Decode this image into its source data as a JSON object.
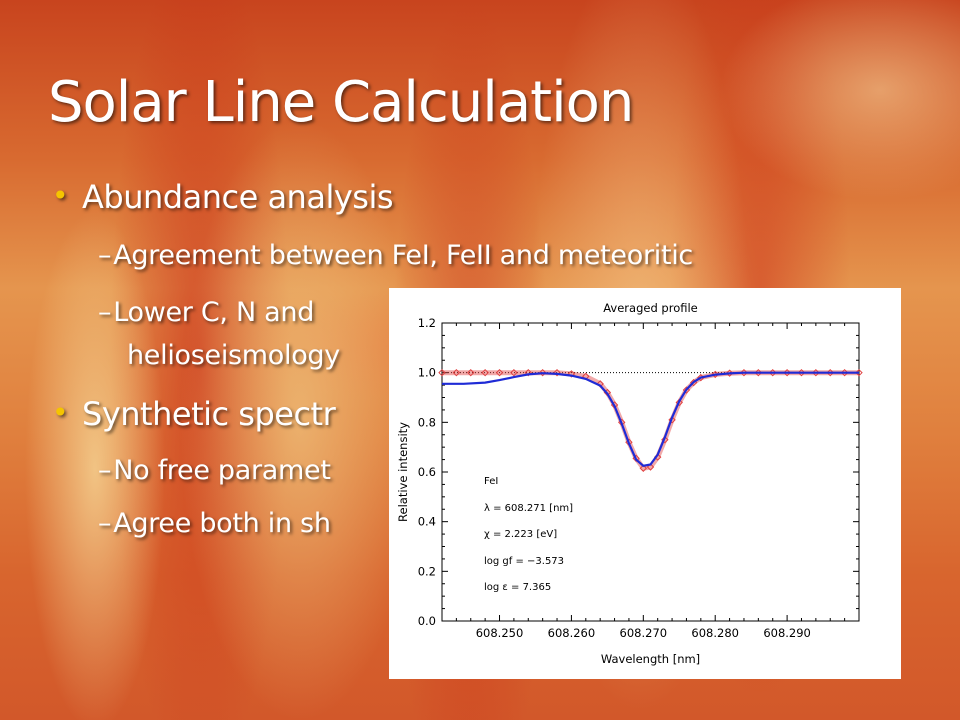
{
  "slide": {
    "title": "Solar Line Calculation",
    "bullets": [
      {
        "text": "Abundance analysis"
      },
      {
        "text": "Agreement between FeI, FeII and meteoritic"
      },
      {
        "text": "Lower C, N and"
      },
      {
        "text": "helioseismology"
      },
      {
        "text": "Synthetic spectr"
      },
      {
        "text": "No free paramet"
      },
      {
        "text": "Agree both in sh"
      }
    ],
    "bullet_glyph": "•",
    "dash_glyph": "–",
    "colors": {
      "title": "#ffffff",
      "bullet_marker": "#f5c400",
      "background_accent": "#d8652e"
    }
  },
  "chart_data": {
    "type": "line",
    "title": "Averaged profile",
    "xlabel": "Wavelength [nm]",
    "ylabel": "Relative intensity",
    "xlim": [
      608.242,
      608.3
    ],
    "ylim": [
      0.0,
      1.2
    ],
    "xticks": [
      "608.250",
      "608.260",
      "608.270",
      "608.280",
      "608.290"
    ],
    "xtick_values": [
      608.25,
      608.26,
      608.27,
      608.28,
      608.29
    ],
    "yticks": [
      "0.0",
      "0.2",
      "0.4",
      "0.6",
      "0.8",
      "1.0",
      "1.2"
    ],
    "ytick_values": [
      0.0,
      0.2,
      0.4,
      0.6,
      0.8,
      1.0,
      1.2
    ],
    "continuum_reference": 1.0,
    "series": [
      {
        "color": "#e04040",
        "style": "diamond-markers",
        "x": [
          608.242,
          608.244,
          608.246,
          608.248,
          608.25,
          608.252,
          608.254,
          608.256,
          608.258,
          608.26,
          608.262,
          608.264,
          608.265,
          608.266,
          608.267,
          608.268,
          608.269,
          608.27,
          608.271,
          608.272,
          608.273,
          608.274,
          608.275,
          608.276,
          608.277,
          608.278,
          608.28,
          608.282,
          608.284,
          608.286,
          608.288,
          608.29,
          608.292,
          608.294,
          608.296,
          608.298,
          608.3
        ],
        "y": [
          1.0,
          1.0,
          1.0,
          1.0,
          1.0,
          1.0,
          1.0,
          1.0,
          1.0,
          0.995,
          0.985,
          0.955,
          0.92,
          0.87,
          0.8,
          0.72,
          0.655,
          0.615,
          0.62,
          0.66,
          0.73,
          0.81,
          0.88,
          0.93,
          0.96,
          0.98,
          0.993,
          0.998,
          1.0,
          1.0,
          1.0,
          1.0,
          1.0,
          1.0,
          1.0,
          1.0,
          1.0
        ]
      },
      {
        "color": "#1f2bd6",
        "style": "line",
        "x": [
          608.242,
          608.245,
          608.248,
          608.25,
          608.252,
          608.254,
          608.256,
          608.258,
          608.26,
          608.262,
          608.264,
          608.265,
          608.266,
          608.267,
          608.268,
          608.269,
          608.27,
          608.271,
          608.272,
          608.273,
          608.274,
          608.275,
          608.276,
          608.277,
          608.278,
          608.28,
          608.282,
          608.284,
          608.286,
          608.288,
          608.29,
          608.295,
          608.3
        ],
        "y": [
          0.955,
          0.955,
          0.96,
          0.97,
          0.982,
          0.993,
          0.998,
          0.995,
          0.988,
          0.975,
          0.948,
          0.915,
          0.865,
          0.795,
          0.715,
          0.65,
          0.625,
          0.63,
          0.67,
          0.74,
          0.82,
          0.885,
          0.932,
          0.962,
          0.98,
          0.992,
          0.997,
          1.0,
          1.0,
          1.0,
          1.0,
          1.0,
          1.0
        ]
      }
    ],
    "annotations": [
      "FeI",
      "λ = 608.271 [nm]",
      "χ =  2.223 [eV]",
      "log gf = −3.573",
      "log ε =  7.365"
    ]
  }
}
